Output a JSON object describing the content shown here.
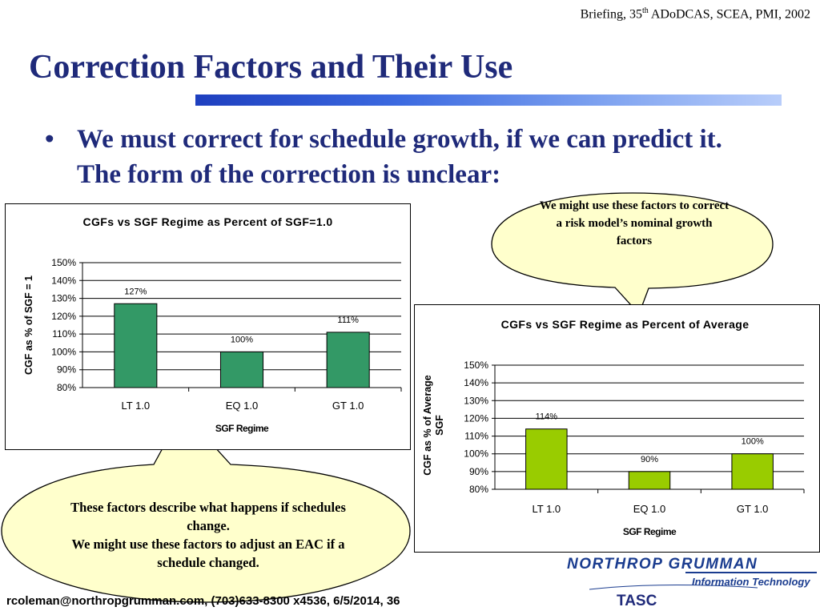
{
  "header": {
    "briefing_prefix": "Briefing, 35",
    "briefing_sup": "th",
    "briefing_suffix": " ADoDCAS, SCEA, PMI, 2002"
  },
  "title": "Correction Factors and Their Use",
  "bullet": {
    "marker": "•",
    "text": "We must correct for schedule growth, if we can predict it.  The form of the correction is unclear:"
  },
  "callouts": {
    "top": "We might use these factors to correct a risk model’s nominal growth factors",
    "bottom_line1": "These factors describe what happens if schedules change.",
    "bottom_line2": "We might use these factors to adjust an EAC if a schedule changed."
  },
  "chart_data": [
    {
      "type": "bar",
      "title": "CGFs vs SGF Regime as Percent of SGF=1.0",
      "xlabel": "SGF Regime",
      "ylabel": "CGF as % of SGF = 1",
      "categories": [
        "LT 1.0",
        "EQ 1.0",
        "GT 1.0"
      ],
      "values": [
        127,
        100,
        111
      ],
      "data_labels": [
        "127%",
        "100%",
        "111%"
      ],
      "ylim": [
        80,
        150
      ],
      "yticks": [
        "80%",
        "90%",
        "100%",
        "110%",
        "120%",
        "130%",
        "140%",
        "150%"
      ],
      "color": "#339966",
      "grid": true,
      "legend": "none"
    },
    {
      "type": "bar",
      "title": "CGFs vs SGF Regime as Percent of Average",
      "xlabel": "SGF Regime",
      "ylabel": "CGF as % of Average SGF",
      "categories": [
        "LT 1.0",
        "EQ 1.0",
        "GT 1.0"
      ],
      "values": [
        114,
        90,
        100
      ],
      "data_labels": [
        "114%",
        "90%",
        "100%"
      ],
      "ylim": [
        80,
        150
      ],
      "yticks": [
        "80%",
        "90%",
        "100%",
        "110%",
        "120%",
        "130%",
        "140%",
        "150%"
      ],
      "color": "#99cc00",
      "grid": true,
      "legend": "none"
    }
  ],
  "footer": "rcoleman@northropgrumman.com, (703)633-8300 x4536, 6/5/2014, 36",
  "logo": {
    "line1": "NORTHROP GRUMMAN",
    "line2": "Information Technology",
    "color": "#1a3c8f"
  },
  "tasc": "TASC",
  "colors": {
    "title": "#1f2a7a",
    "callout_fill": "#ffffcc"
  }
}
